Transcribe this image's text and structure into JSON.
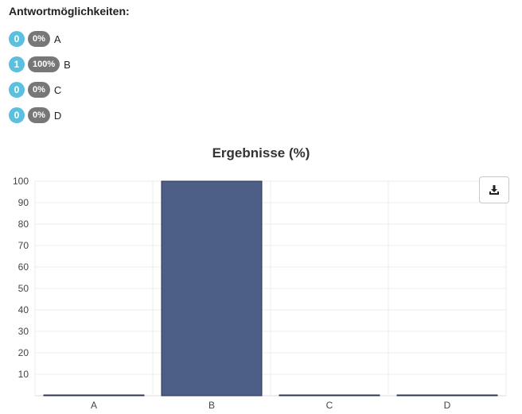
{
  "heading": "Antwortmöglichkeiten:",
  "options": [
    {
      "count": "0",
      "percent": "0%",
      "label": "A"
    },
    {
      "count": "1",
      "percent": "100%",
      "label": "B"
    },
    {
      "count": "0",
      "percent": "0%",
      "label": "C"
    },
    {
      "count": "0",
      "percent": "0%",
      "label": "D"
    }
  ],
  "download_icon": "download-icon",
  "chart_data": {
    "type": "bar",
    "title": "Ergebnisse (%)",
    "categories": [
      "A",
      "B",
      "C",
      "D"
    ],
    "values": [
      0,
      100,
      0,
      0
    ],
    "ylim": [
      0,
      100
    ],
    "yticks": [
      10,
      20,
      30,
      40,
      50,
      60,
      70,
      80,
      90,
      100
    ],
    "xlabel": "",
    "ylabel": "",
    "grid": true,
    "bar_color": "#4e5f87",
    "bar_border": "#2c3650"
  }
}
